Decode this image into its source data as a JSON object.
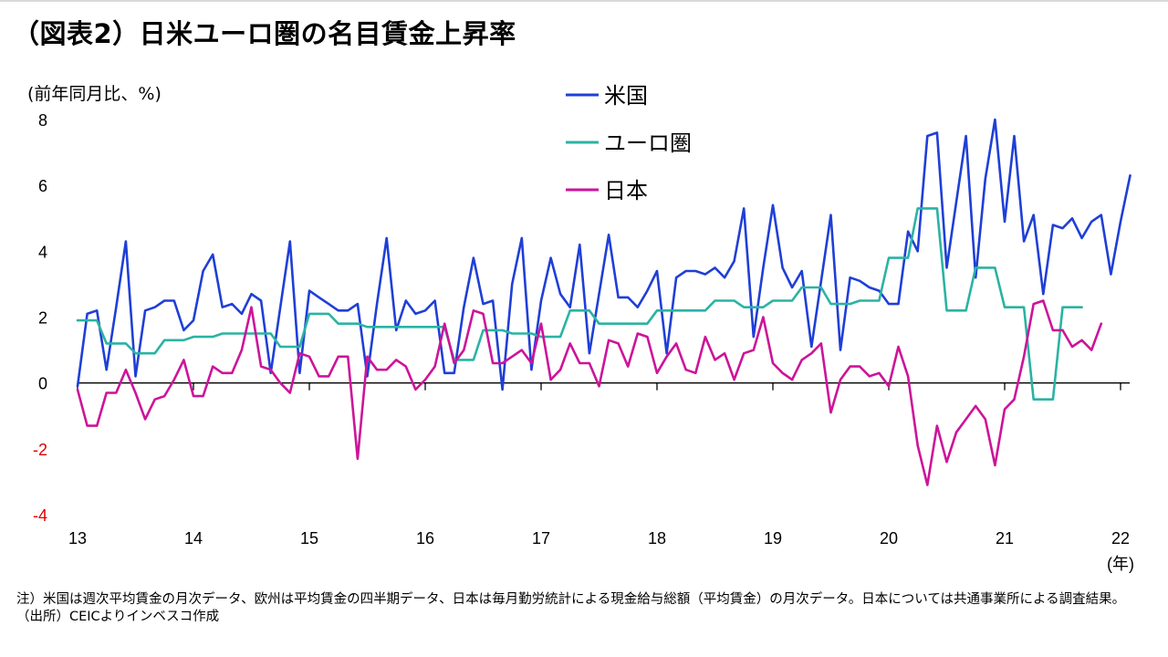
{
  "title": "（図表2）日米ユーロ圏の名目賃金上昇率",
  "notes": {
    "note": "注）米国は週次平均賃金の月次データ、欧州は平均賃金の四半期データ、日本は毎月勤労統計による現金給与総額（平均賃金）の月次データ。日本については共通事業所による調査結果。",
    "source": "（出所）CEICよりインベスコ作成"
  },
  "chart_data": {
    "type": "line",
    "ylabel": "(前年同月比、%)",
    "xlabel": "(年)",
    "ylim": [
      -4,
      8
    ],
    "yticks": [
      "8",
      "6",
      "4",
      "2",
      "0",
      "-2",
      "-4"
    ],
    "yticks_values": [
      8,
      6,
      4,
      2,
      0,
      -2,
      -4
    ],
    "xlim": [
      2013,
      2022
    ],
    "xticks": [
      "13",
      "14",
      "15",
      "16",
      "17",
      "18",
      "19",
      "20",
      "21",
      "22"
    ],
    "xticks_values": [
      2013,
      2014,
      2015,
      2016,
      2017,
      2018,
      2019,
      2020,
      2021,
      2022
    ],
    "grid": false,
    "legend_position": "top-center",
    "negative_tick_color": "#e00000",
    "series": [
      {
        "name": "米国",
        "color": "#1f3fd6",
        "x_start": 2013.0,
        "x_step": 0.08333,
        "values": [
          -0.1,
          2.1,
          2.2,
          0.4,
          2.3,
          4.3,
          0.2,
          2.2,
          2.3,
          2.5,
          2.5,
          1.6,
          1.9,
          3.4,
          3.9,
          2.3,
          2.4,
          2.1,
          2.7,
          2.5,
          0.3,
          2.3,
          4.3,
          0.3,
          2.8,
          2.6,
          2.4,
          2.2,
          2.2,
          2.4,
          0.2,
          2.4,
          4.4,
          1.6,
          2.5,
          2.1,
          2.2,
          2.5,
          0.3,
          0.3,
          2.3,
          3.8,
          2.4,
          2.5,
          -0.2,
          3.0,
          4.4,
          0.4,
          2.5,
          3.8,
          2.7,
          2.3,
          4.2,
          0.9,
          2.7,
          4.5,
          2.6,
          2.6,
          2.3,
          2.8,
          3.4,
          0.9,
          3.2,
          3.4,
          3.4,
          3.3,
          3.5,
          3.2,
          3.7,
          5.3,
          1.4,
          3.5,
          5.4,
          3.5,
          2.9,
          3.4,
          1.1,
          3.1,
          5.1,
          1.0,
          3.2,
          3.1,
          2.9,
          2.8,
          2.4,
          2.4,
          4.6,
          4.0,
          7.5,
          7.6,
          3.5,
          5.5,
          7.5,
          3.2,
          6.2,
          8.0,
          4.9,
          7.5,
          4.3,
          5.1,
          2.7,
          4.8,
          4.7,
          5.0,
          4.4,
          4.9,
          5.1,
          3.3,
          4.9,
          6.3
        ]
      },
      {
        "name": "ユーロ圏",
        "color": "#2ab3a3",
        "x_start": 2013.0,
        "x_step": 0.08333,
        "values": [
          1.9,
          1.9,
          1.9,
          1.2,
          1.2,
          1.2,
          0.9,
          0.9,
          0.9,
          1.3,
          1.3,
          1.3,
          1.4,
          1.4,
          1.4,
          1.5,
          1.5,
          1.5,
          1.5,
          1.5,
          1.5,
          1.1,
          1.1,
          1.1,
          2.1,
          2.1,
          2.1,
          1.8,
          1.8,
          1.8,
          1.7,
          1.7,
          1.7,
          1.7,
          1.7,
          1.7,
          1.7,
          1.7,
          1.7,
          0.7,
          0.7,
          0.7,
          1.6,
          1.6,
          1.6,
          1.5,
          1.5,
          1.5,
          1.4,
          1.4,
          1.4,
          2.2,
          2.2,
          2.2,
          1.8,
          1.8,
          1.8,
          1.8,
          1.8,
          1.8,
          2.2,
          2.2,
          2.2,
          2.2,
          2.2,
          2.2,
          2.5,
          2.5,
          2.5,
          2.3,
          2.3,
          2.3,
          2.5,
          2.5,
          2.5,
          2.9,
          2.9,
          2.9,
          2.4,
          2.4,
          2.4,
          2.5,
          2.5,
          2.5,
          3.8,
          3.8,
          3.8,
          5.3,
          5.3,
          5.3,
          2.2,
          2.2,
          2.2,
          3.5,
          3.5,
          3.5,
          2.3,
          2.3,
          2.3,
          -0.5,
          -0.5,
          -0.5,
          2.3,
          2.3,
          2.3
        ]
      },
      {
        "name": "日本",
        "color": "#cc1499",
        "x_start": 2013.0,
        "x_step": 0.08333,
        "values": [
          -0.2,
          -1.3,
          -1.3,
          -0.3,
          -0.3,
          0.4,
          -0.3,
          -1.1,
          -0.5,
          -0.4,
          0.1,
          0.7,
          -0.4,
          -0.4,
          0.5,
          0.3,
          0.3,
          1.0,
          2.3,
          0.5,
          0.4,
          0.0,
          -0.3,
          0.9,
          0.8,
          0.2,
          0.2,
          0.8,
          0.8,
          -2.3,
          0.8,
          0.4,
          0.4,
          0.7,
          0.5,
          -0.2,
          0.1,
          0.5,
          1.8,
          0.6,
          1.0,
          2.2,
          2.1,
          0.6,
          0.6,
          0.8,
          1.0,
          0.6,
          1.8,
          0.1,
          0.4,
          1.2,
          0.6,
          0.6,
          -0.1,
          1.3,
          1.2,
          0.5,
          1.5,
          1.4,
          0.3,
          0.8,
          1.2,
          0.4,
          0.3,
          1.4,
          0.7,
          0.9,
          0.1,
          0.9,
          1.0,
          2.0,
          0.6,
          0.3,
          0.1,
          0.7,
          0.9,
          1.2,
          -0.9,
          0.1,
          0.5,
          0.5,
          0.2,
          0.3,
          -0.1,
          1.1,
          0.2,
          -1.9,
          -3.1,
          -1.3,
          -2.4,
          -1.5,
          -1.1,
          -0.7,
          -1.1,
          -2.5,
          -0.8,
          -0.5,
          0.8,
          2.4,
          2.5,
          1.6,
          1.6,
          1.1,
          1.3,
          1.0,
          1.8
        ]
      }
    ]
  }
}
